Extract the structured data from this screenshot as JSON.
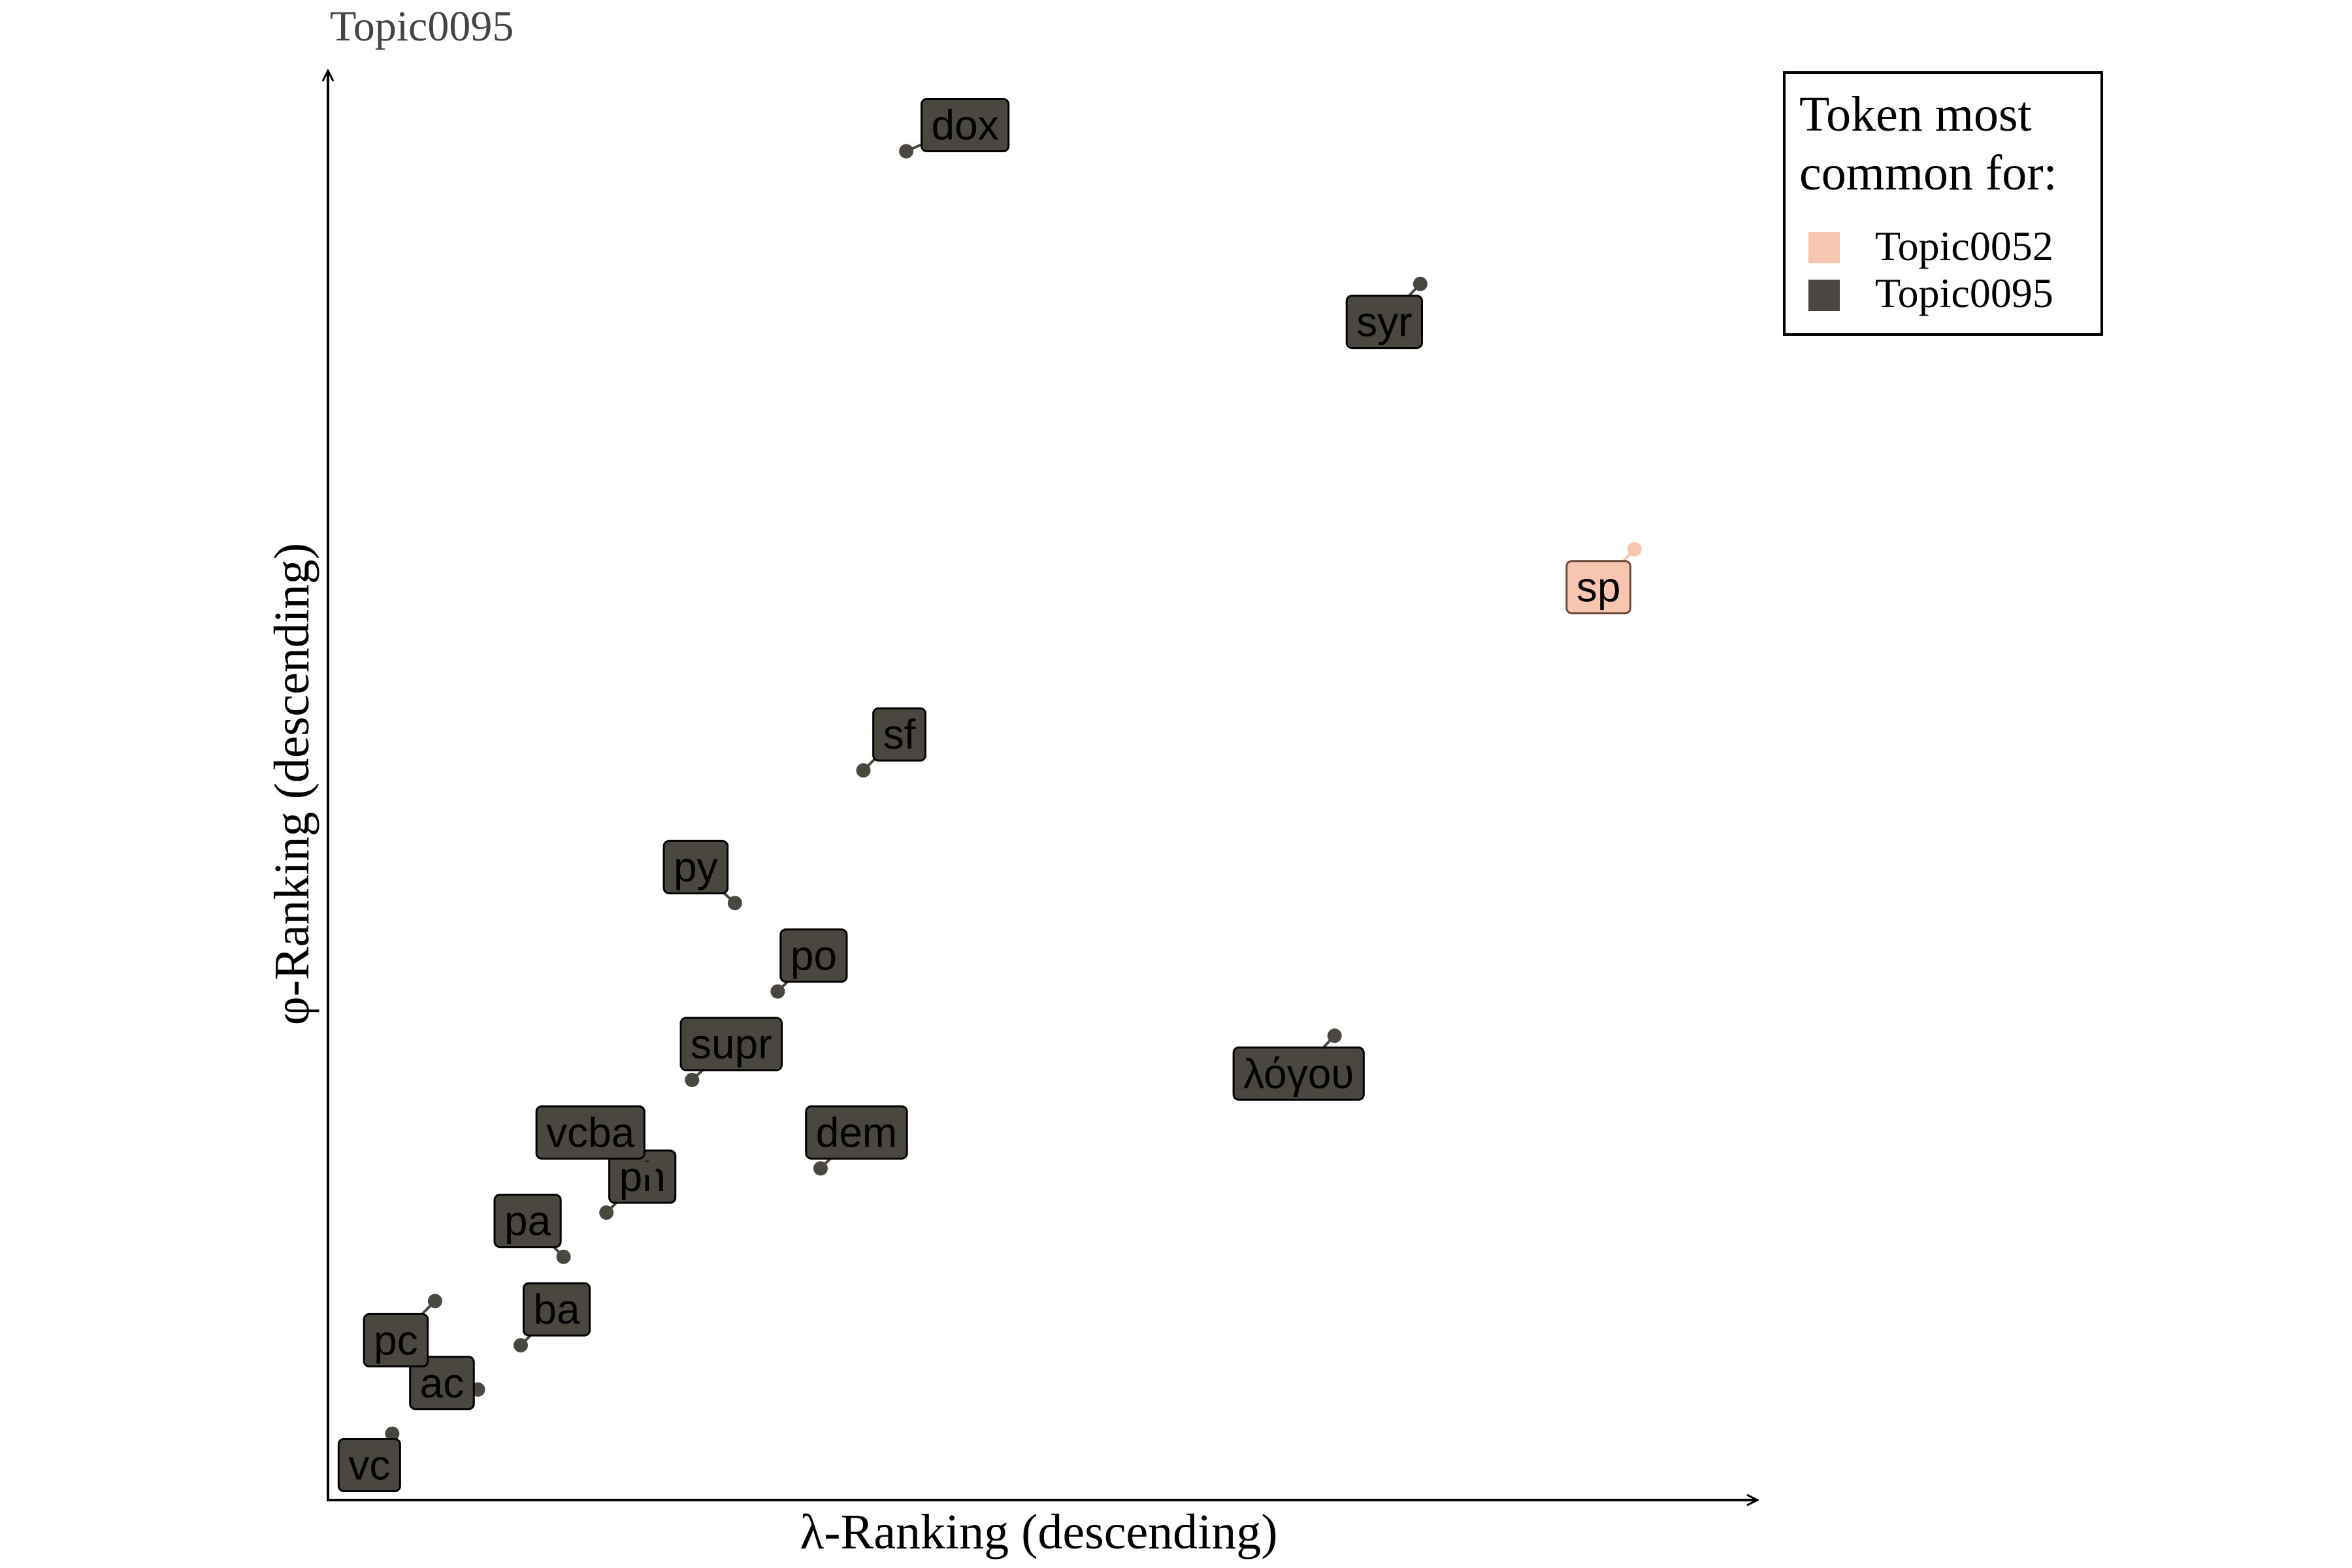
{
  "chart_data": {
    "type": "scatter",
    "title": "Topic0095",
    "xlabel": "λ-Ranking (descending)",
    "ylabel": "φ-Ranking (descending)",
    "xlim": [
      0,
      16
    ],
    "ylim": [
      0,
      16
    ],
    "grid": false,
    "legend_position": "top-right",
    "legend": {
      "title_line1": "Token most",
      "title_line2": "common for:",
      "entries": [
        {
          "name": "Topic0052",
          "color": "#f8c5b0"
        },
        {
          "name": "Topic0095",
          "color": "#4a4740"
        }
      ]
    },
    "points": [
      {
        "label": "vc",
        "x": 0.75,
        "y": 0.75,
        "topic": "Topic0095"
      },
      {
        "label": "ac",
        "x": 1.75,
        "y": 1.25,
        "topic": "Topic0095"
      },
      {
        "label": "pc",
        "x": 1.25,
        "y": 2.25,
        "topic": "Topic0095"
      },
      {
        "label": "ba",
        "x": 2.25,
        "y": 1.75,
        "topic": "Topic0095"
      },
      {
        "label": "pa",
        "x": 2.75,
        "y": 2.75,
        "topic": "Topic0095"
      },
      {
        "label": "ph",
        "x": 3.25,
        "y": 3.25,
        "topic": "Topic0095"
      },
      {
        "label": "vcba",
        "x": 3.75,
        "y": 3.75,
        "topic": "Topic0095"
      },
      {
        "label": "supr",
        "x": 4.25,
        "y": 4.75,
        "topic": "Topic0095"
      },
      {
        "label": "po",
        "x": 5.25,
        "y": 5.75,
        "topic": "Topic0095"
      },
      {
        "label": "py",
        "x": 4.75,
        "y": 6.75,
        "topic": "Topic0095"
      },
      {
        "label": "dem",
        "x": 5.75,
        "y": 3.75,
        "topic": "Topic0095"
      },
      {
        "label": "sf",
        "x": 6.25,
        "y": 8.25,
        "topic": "Topic0095"
      },
      {
        "label": "dox",
        "x": 6.75,
        "y": 15.25,
        "topic": "Topic0095"
      },
      {
        "label": "λόγου",
        "x": 11.75,
        "y": 5.25,
        "topic": "Topic0095"
      },
      {
        "label": "syr",
        "x": 12.75,
        "y": 13.75,
        "topic": "Topic0095"
      },
      {
        "label": "sp",
        "x": 15.25,
        "y": 10.75,
        "topic": "Topic0052"
      }
    ]
  }
}
